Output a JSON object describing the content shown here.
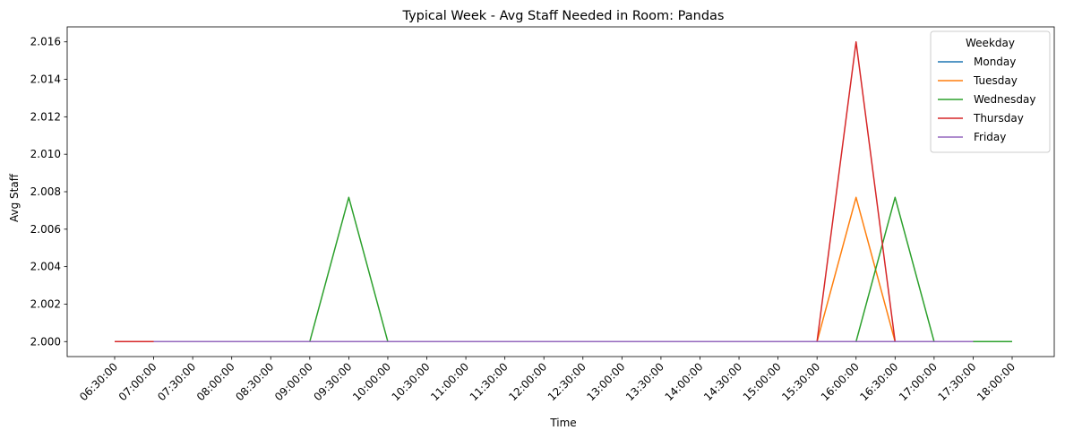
{
  "chart_data": {
    "type": "line",
    "title": "Typical Week - Avg Staff Needed in Room: Pandas",
    "xlabel": "Time",
    "ylabel": "Avg Staff",
    "categories": [
      "06:30:00",
      "07:00:00",
      "07:30:00",
      "08:00:00",
      "08:30:00",
      "09:00:00",
      "09:30:00",
      "10:00:00",
      "10:30:00",
      "11:00:00",
      "11:30:00",
      "12:00:00",
      "12:30:00",
      "13:00:00",
      "13:30:00",
      "14:00:00",
      "14:30:00",
      "15:00:00",
      "15:30:00",
      "16:00:00",
      "16:30:00",
      "17:00:00",
      "17:30:00",
      "18:00:00"
    ],
    "ylim": [
      1.9992,
      2.0168
    ],
    "yticks": [
      "2.000",
      "2.002",
      "2.004",
      "2.006",
      "2.008",
      "2.010",
      "2.012",
      "2.014",
      "2.016"
    ],
    "grid": false,
    "legend": {
      "title": "Weekday",
      "position": "top-right"
    },
    "series": [
      {
        "name": "Monday",
        "color": "#1f77b4",
        "values": [
          null,
          2.0,
          2.0,
          2.0,
          2.0,
          2.0,
          2.0,
          2.0,
          2.0,
          2.0,
          2.0,
          2.0,
          2.0,
          2.0,
          2.0,
          2.0,
          2.0,
          2.0,
          2.0,
          2.0,
          2.0,
          2.0,
          2.0,
          null
        ]
      },
      {
        "name": "Tuesday",
        "color": "#ff7f0e",
        "values": [
          null,
          2.0,
          2.0,
          2.0,
          2.0,
          2.0,
          2.0,
          2.0,
          2.0,
          2.0,
          2.0,
          2.0,
          2.0,
          2.0,
          2.0,
          2.0,
          2.0,
          2.0,
          2.0,
          2.0077,
          2.0,
          2.0,
          2.0,
          null
        ]
      },
      {
        "name": "Wednesday",
        "color": "#2ca02c",
        "values": [
          null,
          2.0,
          2.0,
          2.0,
          2.0,
          2.0,
          2.0077,
          2.0,
          2.0,
          2.0,
          2.0,
          2.0,
          2.0,
          2.0,
          2.0,
          2.0,
          2.0,
          2.0,
          2.0,
          2.0,
          2.0077,
          2.0,
          2.0,
          2.0
        ]
      },
      {
        "name": "Thursday",
        "color": "#d62728",
        "values": [
          2.0,
          2.0,
          2.0,
          2.0,
          2.0,
          2.0,
          2.0,
          2.0,
          2.0,
          2.0,
          2.0,
          2.0,
          2.0,
          2.0,
          2.0,
          2.0,
          2.0,
          2.0,
          2.0,
          2.016,
          2.0,
          2.0,
          2.0,
          null
        ]
      },
      {
        "name": "Friday",
        "color": "#9467bd",
        "values": [
          null,
          2.0,
          2.0,
          2.0,
          2.0,
          2.0,
          2.0,
          2.0,
          2.0,
          2.0,
          2.0,
          2.0,
          2.0,
          2.0,
          2.0,
          2.0,
          2.0,
          2.0,
          2.0,
          2.0,
          2.0,
          2.0,
          2.0,
          null
        ]
      }
    ]
  }
}
